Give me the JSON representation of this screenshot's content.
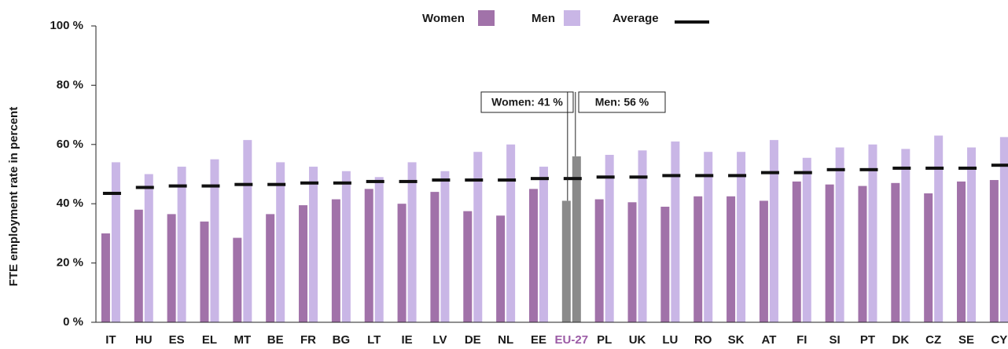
{
  "chart_data": {
    "type": "bar",
    "y_label": "FTE employment rate in percent",
    "categories": [
      "IT",
      "HU",
      "ES",
      "EL",
      "MT",
      "BE",
      "FR",
      "BG",
      "LT",
      "IE",
      "LV",
      "DE",
      "NL",
      "EE",
      "EU-27",
      "PL",
      "UK",
      "LU",
      "RO",
      "SK",
      "AT",
      "FI",
      "SI",
      "PT",
      "DK",
      "CZ",
      "SE",
      "CY"
    ],
    "series": [
      {
        "name": "Women",
        "color": "#a172a9",
        "values": [
          30,
          38,
          36.5,
          34,
          28.5,
          36.5,
          39.5,
          41.5,
          45,
          40,
          44,
          37.5,
          36,
          45,
          41,
          41.5,
          40.5,
          39,
          42.5,
          42.5,
          41,
          47.5,
          46.5,
          46,
          47,
          43.5,
          47.5,
          48
        ]
      },
      {
        "name": "Men",
        "color": "#c9b6e6",
        "values": [
          54,
          50,
          52.5,
          55,
          61.5,
          54,
          52.5,
          51,
          49,
          54,
          51,
          57.5,
          60,
          52.5,
          56,
          56.5,
          58,
          61,
          57.5,
          57.5,
          61.5,
          55.5,
          59,
          60,
          58.5,
          63,
          59,
          62.5
        ]
      },
      {
        "name": "Average",
        "color": "#111111",
        "style": "dash",
        "values": [
          43.5,
          45.5,
          46,
          46,
          46.5,
          46.5,
          47,
          47,
          47.5,
          47.5,
          48,
          48,
          48,
          48.5,
          48.5,
          49,
          49,
          49.5,
          49.5,
          49.5,
          50.5,
          50.5,
          51.5,
          51.5,
          52,
          52,
          52,
          53
        ]
      }
    ],
    "highlight": "EU-27",
    "highlight_color": "#8a8a8a",
    "highlight_label_color": "#9b5ba5",
    "annotations": [
      "Women: 41 %",
      "Men: 56 %"
    ],
    "ylim": [
      0,
      100
    ],
    "yticks": [
      {
        "value": 0,
        "label": "0 %"
      },
      {
        "value": 20,
        "label": "20 %"
      },
      {
        "value": 40,
        "label": "40 %"
      },
      {
        "value": 60,
        "label": "60 %"
      },
      {
        "value": 80,
        "label": "80 %"
      },
      {
        "value": 100,
        "label": "100 %"
      }
    ],
    "grid": false,
    "legend": "top"
  }
}
